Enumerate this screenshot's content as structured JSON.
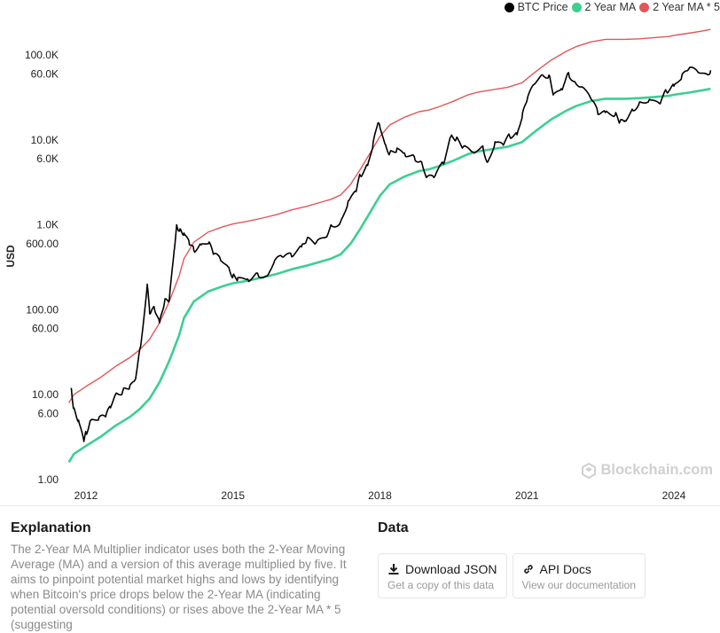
{
  "chart_data": {
    "type": "line",
    "yscale": "log",
    "ylabel": "USD",
    "ylim": [
      1,
      200000
    ],
    "xlim": [
      2011.6,
      2024.75
    ],
    "y_ticks": [
      "1.00",
      "6.00",
      "10.00",
      "60.00",
      "100.00",
      "600.00",
      "1.0K",
      "6.0K",
      "10.0K",
      "60.0K",
      "100.0K"
    ],
    "y_tick_values": [
      1,
      6,
      10,
      60,
      100,
      600,
      1000,
      6000,
      10000,
      60000,
      100000
    ],
    "x_ticks": [
      "2012",
      "2015",
      "2018",
      "2021",
      "2024"
    ],
    "x_tick_values": [
      2012,
      2015,
      2018,
      2021,
      2024
    ],
    "series": [
      {
        "name": "BTC Price",
        "color": "#000000",
        "x": [
          2011.7,
          2011.75,
          2011.85,
          2011.95,
          2012.0,
          2012.1,
          2012.25,
          2012.4,
          2012.5,
          2012.6,
          2012.75,
          2012.9,
          2013.0,
          2013.1,
          2013.2,
          2013.25,
          2013.3,
          2013.4,
          2013.5,
          2013.6,
          2013.7,
          2013.8,
          2013.85,
          2013.92,
          2014.0,
          2014.1,
          2014.2,
          2014.35,
          2014.5,
          2014.6,
          2014.75,
          2014.9,
          2015.0,
          2015.1,
          2015.3,
          2015.5,
          2015.7,
          2015.85,
          2016.0,
          2016.2,
          2016.4,
          2016.5,
          2016.7,
          2016.9,
          2017.0,
          2017.2,
          2017.35,
          2017.5,
          2017.6,
          2017.75,
          2017.85,
          2017.95,
          2018.0,
          2018.1,
          2018.2,
          2018.35,
          2018.5,
          2018.7,
          2018.85,
          2018.95,
          2019.1,
          2019.3,
          2019.45,
          2019.55,
          2019.7,
          2019.9,
          2020.1,
          2020.2,
          2020.35,
          2020.5,
          2020.65,
          2020.8,
          2020.9,
          2021.0,
          2021.15,
          2021.3,
          2021.45,
          2021.55,
          2021.7,
          2021.85,
          2022.0,
          2022.1,
          2022.3,
          2022.45,
          2022.6,
          2022.8,
          2022.9,
          2023.0,
          2023.15,
          2023.3,
          2023.5,
          2023.7,
          2023.85,
          2024.0,
          2024.15,
          2024.3,
          2024.5,
          2024.65,
          2024.75
        ],
        "y": [
          12,
          7,
          5,
          3,
          3.5,
          5,
          5,
          5.5,
          7,
          10,
          11,
          13,
          15,
          35,
          100,
          200,
          90,
          100,
          70,
          120,
          130,
          500,
          1000,
          900,
          800,
          650,
          500,
          580,
          600,
          450,
          380,
          320,
          250,
          240,
          230,
          270,
          250,
          380,
          420,
          420,
          550,
          650,
          620,
          720,
          1000,
          1100,
          1900,
          2500,
          3800,
          5000,
          8000,
          15000,
          14000,
          9000,
          7000,
          8000,
          7000,
          6400,
          5500,
          3600,
          3600,
          5200,
          11000,
          10000,
          8300,
          7200,
          8500,
          5500,
          9500,
          9000,
          11000,
          11500,
          18000,
          29000,
          45000,
          58000,
          58000,
          35000,
          40000,
          62000,
          46000,
          42000,
          31000,
          20000,
          21000,
          19500,
          16500,
          16800,
          23000,
          28000,
          30000,
          27000,
          37000,
          43000,
          52000,
          68000,
          62000,
          60000,
          66000
        ]
      },
      {
        "name": "2 Year MA",
        "color": "#3ccf91",
        "x": [
          2011.65,
          2011.75,
          2012.0,
          2012.3,
          2012.6,
          2012.9,
          2013.1,
          2013.3,
          2013.5,
          2013.7,
          2013.9,
          2014.0,
          2014.2,
          2014.5,
          2014.8,
          2015.0,
          2015.3,
          2015.6,
          2015.9,
          2016.2,
          2016.5,
          2016.8,
          2017.0,
          2017.2,
          2017.4,
          2017.6,
          2017.8,
          2018.0,
          2018.2,
          2018.5,
          2018.8,
          2019.0,
          2019.2,
          2019.5,
          2019.8,
          2020.0,
          2020.3,
          2020.6,
          2020.9,
          2021.0,
          2021.2,
          2021.5,
          2021.8,
          2022.0,
          2022.3,
          2022.6,
          2022.9,
          2023.0,
          2023.3,
          2023.6,
          2023.9,
          2024.0,
          2024.3,
          2024.6,
          2024.75
        ],
        "y": [
          1.6,
          2.0,
          2.5,
          3.2,
          4.3,
          5.5,
          6.8,
          9,
          14,
          25,
          50,
          80,
          125,
          165,
          190,
          205,
          220,
          240,
          265,
          300,
          330,
          370,
          400,
          450,
          600,
          900,
          1400,
          2200,
          3000,
          3700,
          4300,
          4500,
          4900,
          5700,
          6800,
          7300,
          7800,
          8300,
          9400,
          10500,
          13000,
          17500,
          22000,
          25000,
          28500,
          30500,
          30500,
          30500,
          31000,
          32000,
          33000,
          34000,
          36000,
          38500,
          40000
        ]
      },
      {
        "name": "2 Year MA * 5",
        "color": "#e15759",
        "x": [
          2011.65,
          2011.75,
          2012.0,
          2012.3,
          2012.6,
          2012.9,
          2013.1,
          2013.3,
          2013.5,
          2013.7,
          2013.9,
          2014.0,
          2014.2,
          2014.5,
          2014.8,
          2015.0,
          2015.3,
          2015.6,
          2015.9,
          2016.2,
          2016.5,
          2016.8,
          2017.0,
          2017.2,
          2017.4,
          2017.6,
          2017.8,
          2018.0,
          2018.2,
          2018.5,
          2018.8,
          2019.0,
          2019.2,
          2019.5,
          2019.8,
          2020.0,
          2020.3,
          2020.6,
          2020.9,
          2021.0,
          2021.2,
          2021.5,
          2021.8,
          2022.0,
          2022.3,
          2022.6,
          2022.9,
          2023.0,
          2023.3,
          2023.6,
          2023.9,
          2024.0,
          2024.3,
          2024.6,
          2024.75
        ],
        "y": [
          8,
          10,
          12.5,
          16,
          21.5,
          27.5,
          34,
          45,
          70,
          125,
          250,
          400,
          625,
          825,
          950,
          1025,
          1100,
          1200,
          1325,
          1500,
          1650,
          1850,
          2000,
          2250,
          3000,
          4500,
          7000,
          11000,
          15000,
          18500,
          21500,
          22500,
          24500,
          28500,
          34000,
          36500,
          39000,
          41500,
          47000,
          52500,
          65000,
          87500,
          110000,
          125000,
          142500,
          152500,
          152500,
          152500,
          155000,
          160000,
          165000,
          170000,
          180000,
          192500,
          200000
        ]
      }
    ],
    "legend": "top-right",
    "grid": false
  },
  "watermark": "Blockchain.com",
  "explanation": {
    "title": "Explanation",
    "text": "The 2-Year MA Multiplier indicator uses both the 2-Year Moving Average (MA) and a version of this average multiplied by five. It aims to pinpoint potential market highs and lows by identifying when Bitcoin's price drops below the 2-Year MA (indicating potential oversold conditions) or rises above the 2-Year MA * 5 (suggesting"
  },
  "data_section": {
    "title": "Data",
    "download": {
      "label": "Download JSON",
      "sub": "Get a copy of this data",
      "icon": "download-icon"
    },
    "api": {
      "label": "API Docs",
      "sub": "View our documentation",
      "icon": "link-icon"
    }
  }
}
